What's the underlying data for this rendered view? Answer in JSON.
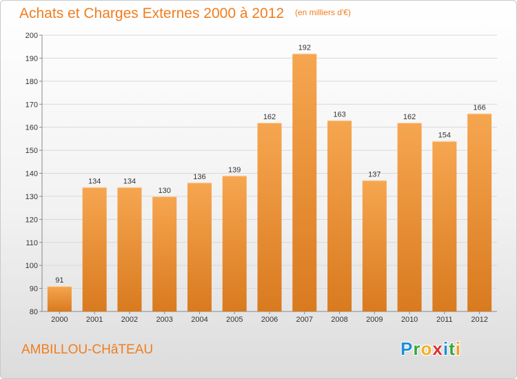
{
  "header": {
    "title": "Achats et Charges Externes 2000 à 2012",
    "subtitle": "(en milliers d'€)"
  },
  "footer": {
    "commune": "AMBILLOU-CHâTEAU",
    "brand_letters": [
      {
        "char": "P",
        "color": "#1f8fd6"
      },
      {
        "char": "r",
        "color": "#3aa43a"
      },
      {
        "char": "o",
        "color": "#f0b020"
      },
      {
        "char": "x",
        "color": "#e03030"
      },
      {
        "char": "i",
        "color": "#1f8fd6"
      },
      {
        "char": "t",
        "color": "#3aa43a"
      },
      {
        "char": "i",
        "color": "#f0a020"
      }
    ]
  },
  "colors": {
    "accent": "#f07d1e",
    "bar_top": "#f6a650",
    "bar_bottom": "#d97a1f",
    "grid": "#d8d8d8",
    "axis": "#888888"
  },
  "chart_data": {
    "type": "bar",
    "title": "Achats et Charges Externes 2000 à 2012",
    "subtitle": "(en milliers d'€)",
    "categories": [
      "2000",
      "2001",
      "2002",
      "2003",
      "2004",
      "2005",
      "2006",
      "2007",
      "2008",
      "2009",
      "2010",
      "2011",
      "2012"
    ],
    "values": [
      91,
      134,
      134,
      130,
      136,
      139,
      162,
      192,
      163,
      137,
      162,
      154,
      166
    ],
    "ylim": [
      80,
      200
    ],
    "yticks": [
      80,
      90,
      100,
      110,
      120,
      130,
      140,
      150,
      160,
      170,
      180,
      190,
      200
    ],
    "grid": true,
    "data_labels": true
  }
}
